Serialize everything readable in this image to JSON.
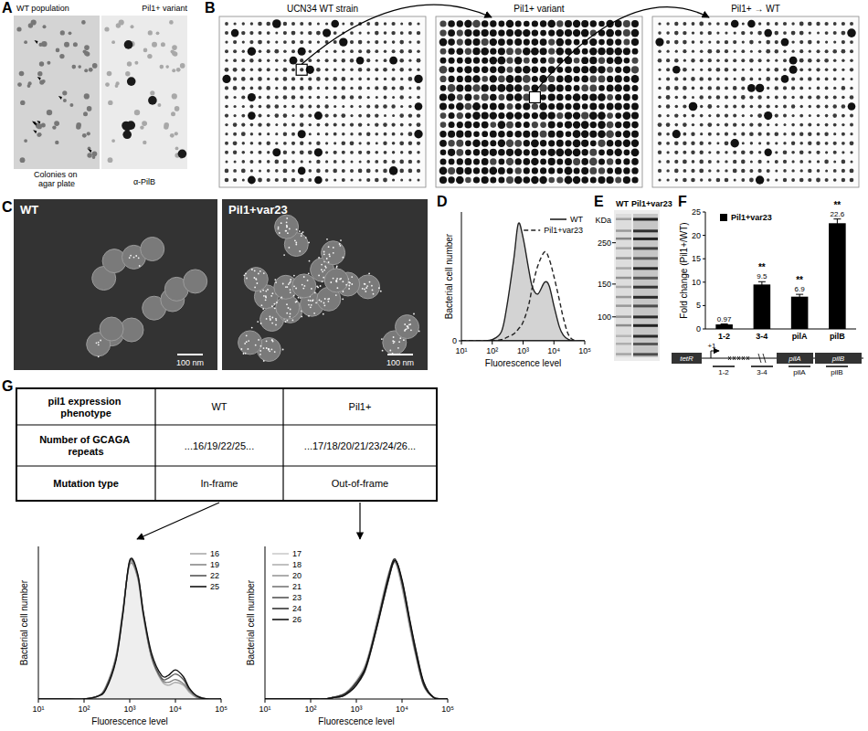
{
  "panels": {
    "A": {
      "letter": "A",
      "left_title": "WT population",
      "right_title": "Pil1+ variant",
      "left_caption": "Colonies on agar plate",
      "right_caption": "α-PilB"
    },
    "B": {
      "letter": "B",
      "titles": [
        "UCN34 WT strain",
        "Pil1+ variant",
        "Pil1+ → WT"
      ]
    },
    "C": {
      "letter": "C",
      "titles": [
        "WT",
        "Pil1+var23"
      ],
      "scale_bar": "100 nm"
    },
    "D": {
      "letter": "D"
    },
    "E": {
      "letter": "E",
      "unit": "KDa",
      "markers": [
        250,
        150,
        100
      ],
      "ylim": [
        58,
        374
      ],
      "log": true,
      "lanes": [
        "WT",
        "Pil1+var23"
      ]
    },
    "F": {
      "letter": "F",
      "gene_map": {
        "genes": [
          "tetR",
          "pilA",
          "pilB"
        ],
        "tss": "+1",
        "amplicons": [
          "1-2",
          "3-4",
          "pilA",
          "pilB"
        ]
      }
    },
    "G": {
      "letter": "G",
      "table": {
        "rows": [
          [
            "pil1 expression phenotype",
            "WT",
            "Pil1+"
          ],
          [
            "Number of GCAGA repeats",
            "...16/19/22/25...",
            "...17/18/20/21/23/24/26..."
          ],
          [
            "Mutation type",
            "In-frame",
            "Out-of-frame"
          ]
        ]
      }
    }
  },
  "chart_data": [
    {
      "type": "line",
      "log": "x",
      "x": [
        10,
        20,
        50,
        100,
        200,
        300,
        500,
        700,
        1000,
        1500,
        2000,
        3000,
        5000,
        7000,
        10000,
        15000,
        20000,
        30000,
        50000,
        100000
      ],
      "xlim": [
        10,
        100000
      ],
      "xticks": [
        {
          "value": 10,
          "label": "10¹"
        },
        {
          "value": 100,
          "label": "10²"
        },
        {
          "value": 1000,
          "label": "10³"
        },
        {
          "value": 10000,
          "label": "10⁴"
        },
        {
          "value": 100000,
          "label": "10⁵"
        }
      ],
      "ylim": [
        0,
        110
      ],
      "yticks": [
        0
      ],
      "xlabel": "Fluorescence level",
      "ylabel": "Bacterial cell number",
      "legend": "upper right",
      "series": [
        {
          "name": "WT",
          "type": "area",
          "color": "#222222",
          "line_style": "solid",
          "values": [
            0,
            0,
            0,
            1,
            8,
            30,
            70,
            100,
            88,
            62,
            46,
            40,
            50,
            47,
            30,
            12,
            5,
            1,
            0,
            0
          ]
        },
        {
          "name": "Pil1+var23",
          "type": "line",
          "color": "#222222",
          "line_style": "dashed",
          "values": [
            0,
            0,
            0,
            0,
            1,
            3,
            6,
            10,
            16,
            30,
            46,
            64,
            76,
            70,
            55,
            35,
            20,
            5,
            0,
            0
          ]
        }
      ]
    },
    {
      "type": "bar",
      "categories": [
        "1-2",
        "3-4",
        "pilA",
        "pilB"
      ],
      "series": [
        {
          "name": "Pil1+var23",
          "color": "#000000",
          "values": [
            0.97,
            9.5,
            6.9,
            22.6
          ],
          "errors": [
            0.1,
            0.6,
            0.5,
            0.9
          ],
          "significance": [
            null,
            "**",
            "**",
            "**"
          ]
        }
      ],
      "ylim": [
        0,
        25
      ],
      "yticks": [
        0,
        5,
        10,
        15,
        20,
        25
      ],
      "ylabel": "Fold change (Pil1+/WT)",
      "data_labels": true,
      "legend": "upper left"
    },
    {
      "type": "line",
      "log": "x",
      "x": [
        10,
        20,
        50,
        100,
        200,
        300,
        500,
        700,
        1000,
        1500,
        2000,
        3000,
        5000,
        7000,
        10000,
        15000,
        20000,
        30000,
        50000,
        100000
      ],
      "xlim": [
        10,
        100000
      ],
      "xticks": [
        {
          "value": 10,
          "label": "10¹"
        },
        {
          "value": 100,
          "label": "10²"
        },
        {
          "value": 1000,
          "label": "10³"
        },
        {
          "value": 10000,
          "label": "10⁴"
        },
        {
          "value": 100000,
          "label": "10⁵"
        }
      ],
      "ylim": [
        0,
        110
      ],
      "tick_labels": "x",
      "xlabel": "Fluorescence level",
      "ylabel": "Bacterial cell number",
      "legend": "upper right",
      "series": [
        {
          "name": "16",
          "type": "area",
          "color": "#aaaaaa",
          "values": [
            0,
            0,
            0,
            0,
            2,
            8,
            30,
            62,
            98,
            88,
            60,
            30,
            13,
            10,
            12,
            10,
            5,
            1,
            0,
            0
          ]
        },
        {
          "name": "19",
          "type": "line",
          "color": "#888888",
          "values": [
            0,
            0,
            0,
            0,
            2,
            9,
            31,
            63,
            97,
            87,
            59,
            30,
            14,
            12,
            14,
            11,
            6,
            1,
            0,
            0
          ]
        },
        {
          "name": "22",
          "type": "line",
          "color": "#555555",
          "values": [
            0,
            0,
            0,
            0,
            2,
            8,
            29,
            61,
            99,
            89,
            61,
            31,
            15,
            15,
            18,
            14,
            7,
            2,
            0,
            0
          ]
        },
        {
          "name": "25",
          "type": "line",
          "color": "#111111",
          "values": [
            0,
            0,
            0,
            0,
            2,
            7,
            28,
            60,
            100,
            90,
            62,
            33,
            17,
            17,
            21,
            16,
            8,
            2,
            0,
            0
          ]
        }
      ]
    },
    {
      "type": "line",
      "log": "x",
      "x": [
        10,
        20,
        50,
        100,
        200,
        300,
        500,
        700,
        1000,
        1500,
        2000,
        3000,
        5000,
        7000,
        10000,
        15000,
        20000,
        30000,
        50000,
        100000
      ],
      "xlim": [
        10,
        100000
      ],
      "xticks": [
        {
          "value": 10,
          "label": "10¹"
        },
        {
          "value": 100,
          "label": "10²"
        },
        {
          "value": 1000,
          "label": "10³"
        },
        {
          "value": 10000,
          "label": "10⁴"
        },
        {
          "value": 100000,
          "label": "10⁵"
        }
      ],
      "ylim": [
        0,
        110
      ],
      "tick_labels": "x",
      "xlabel": "Fluorescence level",
      "ylabel": "Bacterial cell number",
      "legend": "upper left",
      "series": [
        {
          "name": "17",
          "type": "line",
          "color": "#cccccc",
          "values": [
            0,
            0,
            0,
            0,
            0,
            1,
            3,
            6,
            12,
            22,
            35,
            58,
            88,
            98,
            82,
            52,
            32,
            10,
            1,
            0
          ]
        },
        {
          "name": "18",
          "type": "line",
          "color": "#b0b0b0",
          "values": [
            0,
            0,
            0,
            0,
            0,
            1,
            3,
            7,
            13,
            23,
            36,
            60,
            90,
            99,
            80,
            50,
            31,
            9,
            1,
            0
          ]
        },
        {
          "name": "20",
          "type": "line",
          "color": "#999999",
          "values": [
            0,
            0,
            0,
            0,
            0,
            1,
            3,
            6,
            11,
            21,
            34,
            57,
            87,
            100,
            83,
            53,
            33,
            10,
            1,
            0
          ]
        },
        {
          "name": "21",
          "type": "line",
          "color": "#777777",
          "values": [
            0,
            0,
            0,
            0,
            0,
            1,
            2,
            6,
            11,
            20,
            33,
            56,
            86,
            99,
            84,
            54,
            34,
            11,
            1,
            0
          ]
        },
        {
          "name": "23",
          "type": "line",
          "color": "#555555",
          "values": [
            0,
            0,
            0,
            0,
            0,
            1,
            2,
            5,
            10,
            19,
            32,
            55,
            85,
            100,
            85,
            55,
            35,
            11,
            1,
            0
          ]
        },
        {
          "name": "24",
          "type": "line",
          "color": "#333333",
          "values": [
            0,
            0,
            0,
            0,
            0,
            1,
            3,
            6,
            12,
            21,
            34,
            57,
            88,
            101,
            84,
            54,
            33,
            10,
            1,
            0
          ]
        },
        {
          "name": "26",
          "type": "line",
          "color": "#111111",
          "values": [
            0,
            0,
            0,
            0,
            0,
            1,
            2,
            5,
            10,
            20,
            33,
            56,
            86,
            100,
            86,
            56,
            36,
            12,
            1,
            0
          ]
        }
      ]
    }
  ]
}
